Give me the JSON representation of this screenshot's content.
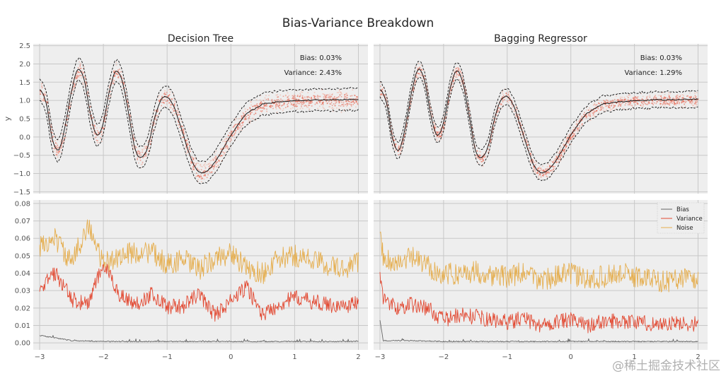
{
  "chart_data": [
    {
      "panel": "top-left",
      "type": "line",
      "suptitle": "Bias-Variance Breakdown",
      "title": "Decision Tree",
      "xlabel": "",
      "ylabel": "y",
      "xlim": [
        -3.1,
        2.15
      ],
      "ylim": [
        -1.55,
        2.55
      ],
      "xticks": [
        -3,
        -2,
        -1,
        0,
        1,
        2
      ],
      "xtick_labels": [
        "−3",
        "−2",
        "−1",
        "0",
        "1",
        "2"
      ],
      "yticks": [
        -1.5,
        -1.0,
        -0.5,
        0.0,
        0.5,
        1.0,
        1.5,
        2.0,
        2.5
      ],
      "ytick_labels": [
        "−1.5",
        "−1.0",
        "−0.5",
        "0.0",
        "0.5",
        "1.0",
        "1.5",
        "2.0",
        "2.5"
      ],
      "grid": true,
      "annotations": [
        "Bias: 0.03%",
        "Variance: 2.43%"
      ],
      "series": [
        {
          "name": "mean prediction",
          "x": [
            -3.0,
            -2.9,
            -2.8,
            -2.7,
            -2.6,
            -2.5,
            -2.4,
            -2.3,
            -2.2,
            -2.1,
            -2.0,
            -1.9,
            -1.8,
            -1.7,
            -1.6,
            -1.5,
            -1.4,
            -1.3,
            -1.2,
            -1.1,
            -1.0,
            -0.9,
            -0.8,
            -0.7,
            -0.6,
            -0.5,
            -0.4,
            -0.3,
            -0.2,
            -0.1,
            0.0,
            0.1,
            0.2,
            0.3,
            0.4,
            0.5,
            0.6,
            0.7,
            0.8,
            0.9,
            1.0,
            1.1,
            1.2,
            1.3,
            1.4,
            1.5,
            1.6,
            1.7,
            1.8,
            1.9,
            2.0
          ],
          "y": [
            1.3,
            0.95,
            -0.05,
            -0.35,
            0.3,
            1.25,
            1.85,
            1.55,
            0.6,
            0.05,
            0.4,
            1.3,
            1.8,
            1.5,
            0.6,
            -0.35,
            -0.55,
            -0.25,
            0.5,
            1.0,
            1.1,
            0.85,
            0.35,
            -0.2,
            -0.7,
            -0.95,
            -0.95,
            -0.8,
            -0.55,
            -0.25,
            0.05,
            0.3,
            0.55,
            0.7,
            0.8,
            0.9,
            0.92,
            0.95,
            0.97,
            0.98,
            1.0,
            1.0,
            1.0,
            1.02,
            1.02,
            1.02,
            1.02,
            1.02,
            1.03,
            1.03,
            1.03
          ]
        },
        {
          "name": "upper band",
          "offset": 0.3
        },
        {
          "name": "lower band",
          "offset": -0.3
        }
      ],
      "colors": {
        "mean": "#1a1a1a",
        "band": "#e8604a",
        "scatter": "#f0a090"
      }
    },
    {
      "panel": "top-right",
      "type": "line",
      "title": "Bagging Regressor",
      "xlim": [
        -3.1,
        2.15
      ],
      "ylim": [
        -1.55,
        2.55
      ],
      "xticks": [
        -3,
        -2,
        -1,
        0,
        1,
        2
      ],
      "grid": true,
      "annotations": [
        "Bias: 0.03%",
        "Variance: 1.29%"
      ],
      "series": [
        {
          "name": "mean prediction",
          "same_as": "top-left"
        },
        {
          "name": "upper band",
          "offset": 0.22
        },
        {
          "name": "lower band",
          "offset": -0.22
        }
      ]
    },
    {
      "panel": "bottom-left",
      "type": "line",
      "xlim": [
        -3.1,
        2.15
      ],
      "ylim": [
        -0.004,
        0.082
      ],
      "xticks": [
        -3,
        -2,
        -1,
        0,
        1,
        2
      ],
      "xtick_labels": [
        "−3",
        "−2",
        "−1",
        "0",
        "1",
        "2"
      ],
      "yticks": [
        0.0,
        0.01,
        0.02,
        0.03,
        0.04,
        0.05,
        0.06,
        0.07,
        0.08
      ],
      "ytick_labels": [
        "0.00",
        "0.01",
        "0.02",
        "0.03",
        "0.04",
        "0.05",
        "0.06",
        "0.07",
        "0.08"
      ],
      "grid": true,
      "series": [
        {
          "name": "Bias",
          "color": "#666666",
          "x": [
            -3.0,
            -2.5,
            -2.0,
            -1.5,
            -1.0,
            -0.5,
            0.0,
            0.5,
            1.0,
            1.5,
            2.0
          ],
          "y": [
            0.004,
            0.001,
            0.0005,
            0.0005,
            0.0005,
            0.0005,
            0.0005,
            0.0005,
            0.0005,
            0.0005,
            0.0005
          ]
        },
        {
          "name": "Variance",
          "color": "#e24a33",
          "x": [
            -3.0,
            -2.75,
            -2.5,
            -2.25,
            -2.0,
            -1.75,
            -1.5,
            -1.25,
            -1.0,
            -0.75,
            -0.5,
            -0.25,
            0.0,
            0.25,
            0.5,
            0.75,
            1.0,
            1.25,
            1.5,
            1.75,
            2.0
          ],
          "y": [
            0.032,
            0.04,
            0.025,
            0.022,
            0.045,
            0.028,
            0.022,
            0.028,
            0.021,
            0.021,
            0.028,
            0.016,
            0.024,
            0.032,
            0.016,
            0.022,
            0.026,
            0.024,
            0.022,
            0.021,
            0.023
          ]
        },
        {
          "name": "Noise",
          "color": "#e5ae4f",
          "x": [
            -3.0,
            -2.75,
            -2.5,
            -2.25,
            -2.0,
            -1.75,
            -1.5,
            -1.25,
            -1.0,
            -0.75,
            -0.5,
            -0.25,
            0.0,
            0.25,
            0.5,
            0.75,
            1.0,
            1.25,
            1.5,
            1.75,
            2.0
          ],
          "y": [
            0.055,
            0.06,
            0.045,
            0.068,
            0.045,
            0.05,
            0.052,
            0.052,
            0.045,
            0.048,
            0.042,
            0.048,
            0.052,
            0.042,
            0.04,
            0.048,
            0.05,
            0.048,
            0.045,
            0.042,
            0.047
          ]
        }
      ]
    },
    {
      "panel": "bottom-right",
      "type": "line",
      "xlim": [
        -3.1,
        2.15
      ],
      "ylim": [
        -0.004,
        0.082
      ],
      "xticks": [
        -3,
        -2,
        -1,
        0,
        1,
        2
      ],
      "grid": true,
      "legend": {
        "placement": "top-right",
        "entries": [
          "Bias",
          "Variance",
          "Noise"
        ]
      },
      "series": [
        {
          "name": "Bias",
          "color": "#666666",
          "x": [
            -3.0,
            -2.95,
            -2.5,
            -2.0,
            -1.5,
            -1.0,
            -0.5,
            0.0,
            0.5,
            1.0,
            1.5,
            2.0
          ],
          "y": [
            0.013,
            0.001,
            0.001,
            0.0005,
            0.0005,
            0.0005,
            0.0005,
            0.0005,
            0.0005,
            0.0005,
            0.0005,
            0.0005
          ]
        },
        {
          "name": "Variance",
          "color": "#e24a33",
          "x": [
            -3.0,
            -2.95,
            -2.75,
            -2.5,
            -2.25,
            -2.0,
            -1.75,
            -1.5,
            -1.25,
            -1.0,
            -0.75,
            -0.5,
            -0.25,
            0.0,
            0.25,
            0.5,
            0.75,
            1.0,
            1.25,
            1.5,
            1.75,
            2.0
          ],
          "y": [
            0.04,
            0.026,
            0.02,
            0.022,
            0.02,
            0.013,
            0.016,
            0.015,
            0.013,
            0.012,
            0.014,
            0.01,
            0.012,
            0.013,
            0.01,
            0.012,
            0.013,
            0.012,
            0.011,
            0.011,
            0.011,
            0.011
          ]
        },
        {
          "name": "Noise",
          "color": "#e5ae4f",
          "x": [
            -3.0,
            -2.95,
            -2.75,
            -2.5,
            -2.25,
            -2.0,
            -1.75,
            -1.5,
            -1.25,
            -1.0,
            -0.75,
            -0.5,
            -0.25,
            0.0,
            0.25,
            0.5,
            0.75,
            1.0,
            1.25,
            1.5,
            1.75,
            2.0
          ],
          "y": [
            0.066,
            0.05,
            0.045,
            0.049,
            0.044,
            0.039,
            0.04,
            0.041,
            0.039,
            0.038,
            0.04,
            0.036,
            0.038,
            0.04,
            0.036,
            0.038,
            0.04,
            0.038,
            0.037,
            0.035,
            0.038,
            0.036
          ]
        }
      ]
    }
  ],
  "watermark": "@稀土掘金技术社区"
}
